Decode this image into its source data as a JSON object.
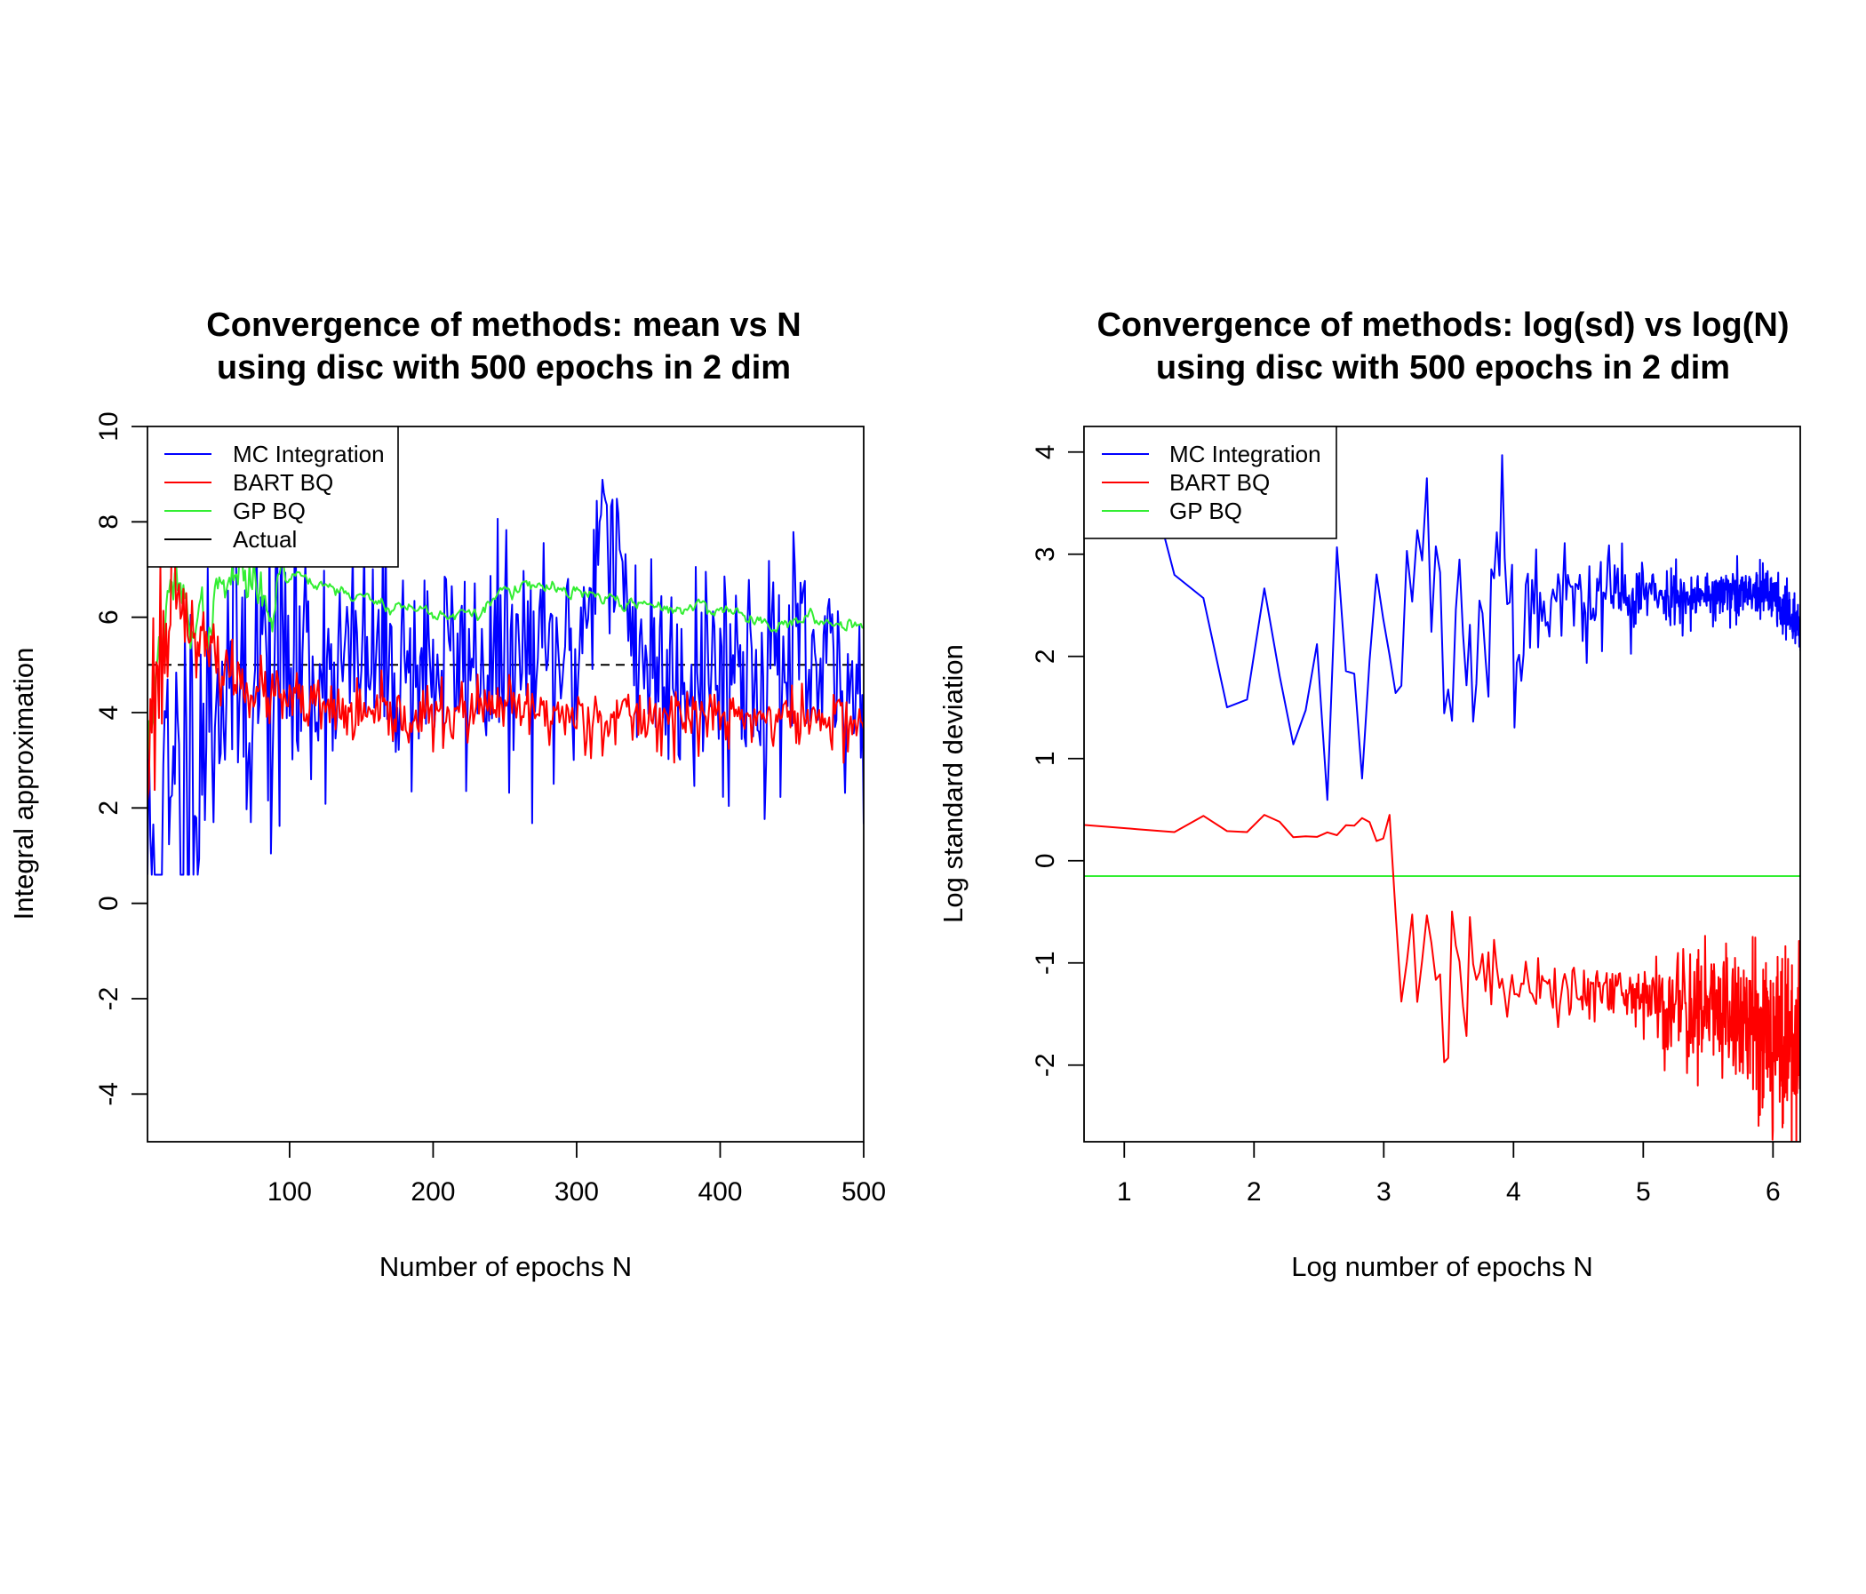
{
  "colors": {
    "mc": "#0000ff",
    "bart": "#ff0000",
    "gp": "#33ee33",
    "actual": "#000000"
  },
  "chart_data": [
    {
      "type": "line",
      "title_line1": "Convergence of methods: mean vs N",
      "title_line2": "using disc with 500 epochs in 2 dim",
      "xlabel": "Number of epochs N",
      "ylabel": "Integral approximation",
      "xlim": [
        1,
        500
      ],
      "ylim": [
        -5,
        10
      ],
      "xticks": [
        100,
        200,
        300,
        400,
        500
      ],
      "yticks": [
        -4,
        -2,
        0,
        2,
        4,
        6,
        8,
        10
      ],
      "legend_position": "top-left",
      "grid": false,
      "series": [
        {
          "name": "MC Integration",
          "color": "#0000ff",
          "generator": "mc_mean",
          "x": [
            1,
            50,
            100,
            150,
            200,
            250,
            300,
            316,
            350,
            400,
            450,
            500
          ],
          "y": [
            0.0,
            4.8,
            5.0,
            5.1,
            5.0,
            5.1,
            5.0,
            8.0,
            5.0,
            5.0,
            5.0,
            4.3
          ],
          "notes_range": "values oscillate roughly between 1 and 8"
        },
        {
          "name": "BART BQ",
          "color": "#ff0000",
          "generator": "bart_mean",
          "x": [
            1,
            20,
            30,
            50,
            80,
            100,
            150,
            200,
            250,
            300,
            350,
            400,
            450,
            500
          ],
          "y": [
            3.5,
            7.0,
            5.8,
            5.0,
            4.4,
            4.2,
            3.9,
            3.9,
            4.1,
            3.9,
            3.9,
            3.9,
            3.9,
            3.8
          ]
        },
        {
          "name": "GP BQ",
          "color": "#33ee33",
          "generator": "gp_mean",
          "x": [
            1,
            10,
            20,
            40,
            60,
            90,
            100,
            150,
            200,
            230,
            250,
            280,
            300,
            350,
            400,
            430,
            500
          ],
          "y": [
            3.3,
            5.5,
            6.5,
            5.8,
            6.8,
            6.5,
            7.0,
            6.4,
            6.1,
            6.0,
            6.6,
            6.6,
            6.5,
            6.2,
            6.2,
            5.9,
            5.9
          ]
        },
        {
          "name": "Actual",
          "color": "#000000",
          "style": "dashed",
          "x": [
            1,
            500
          ],
          "y": [
            5.0,
            5.0
          ]
        }
      ]
    },
    {
      "type": "line",
      "title_line1": "Convergence of methods: log(sd) vs log(N)",
      "title_line2": "using disc with 500 epochs in 2 dim",
      "xlabel": "Log number of epochs N",
      "ylabel": "Log standard deviation",
      "xlim": [
        0.69,
        6.21
      ],
      "ylim": [
        -2.75,
        4.25
      ],
      "xticks": [
        1,
        2,
        3,
        4,
        5,
        6
      ],
      "yticks": [
        -2,
        -1,
        0,
        1,
        2,
        3,
        4
      ],
      "legend_position": "top-left",
      "grid": false,
      "series": [
        {
          "name": "MC Integration",
          "color": "#0000ff",
          "generator": "mc_sd",
          "x": [
            1.1,
            1.39,
            1.61,
            1.79,
            1.95,
            2.08,
            2.2,
            2.3,
            2.4,
            2.48,
            2.56,
            2.64,
            2.71,
            2.77,
            2.83,
            2.89,
            2.94,
            3.0,
            3.04,
            3.09,
            3.14,
            3.18,
            3.22,
            3.26,
            3.3,
            3.4,
            3.5,
            3.6,
            3.7,
            3.8,
            3.9,
            4.0,
            4.2,
            4.5,
            5.0,
            5.5,
            6.0,
            6.21
          ],
          "y": [
            4.2,
            2.78,
            2.57,
            1.5,
            1.58,
            2.67,
            1.79,
            1.13,
            1.48,
            2.23,
            0.43,
            3.1,
            1.82,
            1.88,
            0.74,
            1.95,
            2.84,
            2.33,
            2.05,
            1.64,
            1.72,
            3.1,
            2.52,
            3.27,
            2.9,
            3.1,
            1.3,
            2.97,
            1.6,
            2.9,
            3.17,
            2.4,
            2.5,
            2.6,
            2.6,
            2.6,
            2.6,
            2.25
          ]
        },
        {
          "name": "BART BQ",
          "color": "#ff0000",
          "generator": "bart_sd",
          "x": [
            0.69,
            1.39,
            1.61,
            1.79,
            1.95,
            2.08,
            2.2,
            2.3,
            2.4,
            2.48,
            2.56,
            2.64,
            2.71,
            2.77,
            2.83,
            2.89,
            2.94,
            3.0,
            3.04,
            3.09,
            3.14,
            3.5,
            4.0,
            4.5,
            5.0,
            5.5,
            5.9,
            6.21
          ],
          "y": [
            0.35,
            0.28,
            0.44,
            0.29,
            0.28,
            0.45,
            0.38,
            0.23,
            0.24,
            0.23,
            0.28,
            0.25,
            0.35,
            0.34,
            0.42,
            0.38,
            0.19,
            0.22,
            0.19,
            -0.5,
            -1.1,
            -1.0,
            -1.25,
            -1.3,
            -1.35,
            -1.45,
            -1.6,
            -1.9
          ]
        },
        {
          "name": "GP BQ",
          "color": "#33ee33",
          "x": [
            0.69,
            6.21
          ],
          "y": [
            -0.15,
            -0.15
          ]
        }
      ]
    }
  ]
}
